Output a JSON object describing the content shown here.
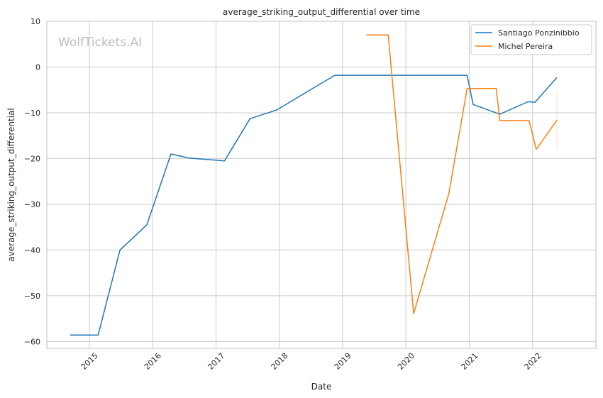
{
  "chart_data": {
    "type": "line",
    "title": "average_striking_output_differential over time",
    "xlabel": "Date",
    "ylabel": "average_striking_output_differential",
    "watermark": "WolfTickets.AI",
    "xlim": [
      "2014-05-01",
      "2023-01-01"
    ],
    "ylim": [
      -61.5,
      10
    ],
    "x_ticks": [
      "2015",
      "2016",
      "2017",
      "2018",
      "2019",
      "2020",
      "2021",
      "2022"
    ],
    "y_ticks": [
      10,
      0,
      -10,
      -20,
      -30,
      -40,
      -50,
      -60
    ],
    "grid": true,
    "legend_position": "top-right",
    "series": [
      {
        "name": "Santiago Ponzinibbio",
        "color": "#1f77b4",
        "points": [
          {
            "date": "2014-09-13",
            "value": -58.6
          },
          {
            "date": "2015-02-21",
            "value": -58.6
          },
          {
            "date": "2015-06-27",
            "value": -40.0
          },
          {
            "date": "2015-11-29",
            "value": -34.5
          },
          {
            "date": "2016-04-16",
            "value": -19.0
          },
          {
            "date": "2016-07-30",
            "value": -19.9
          },
          {
            "date": "2017-02-19",
            "value": -20.5
          },
          {
            "date": "2017-07-16",
            "value": -11.3
          },
          {
            "date": "2017-12-16",
            "value": -9.4
          },
          {
            "date": "2018-11-17",
            "value": -1.8
          },
          {
            "date": "2020-12-19",
            "value": -1.8
          },
          {
            "date": "2021-01-23",
            "value": -8.2
          },
          {
            "date": "2021-06-26",
            "value": -10.3
          },
          {
            "date": "2021-12-04",
            "value": -7.6
          },
          {
            "date": "2022-01-15",
            "value": -7.7
          },
          {
            "date": "2022-05-21",
            "value": -2.3
          }
        ]
      },
      {
        "name": "Michel Pereira",
        "color": "#ff7f0e",
        "points": [
          {
            "date": "2019-05-18",
            "value": 7.0
          },
          {
            "date": "2019-09-21",
            "value": 7.0
          },
          {
            "date": "2020-02-15",
            "value": -53.9
          },
          {
            "date": "2020-09-05",
            "value": -27.6
          },
          {
            "date": "2020-12-19",
            "value": -4.7
          },
          {
            "date": "2021-06-05",
            "value": -4.7
          },
          {
            "date": "2021-06-26",
            "value": -11.7
          },
          {
            "date": "2021-12-11",
            "value": -11.7
          },
          {
            "date": "2022-01-22",
            "value": -18.0
          },
          {
            "date": "2022-05-21",
            "value": -11.6
          }
        ],
        "error_band": {
          "date": "2022-05-21",
          "low": -18.0,
          "high": -5.3
        }
      }
    ]
  }
}
